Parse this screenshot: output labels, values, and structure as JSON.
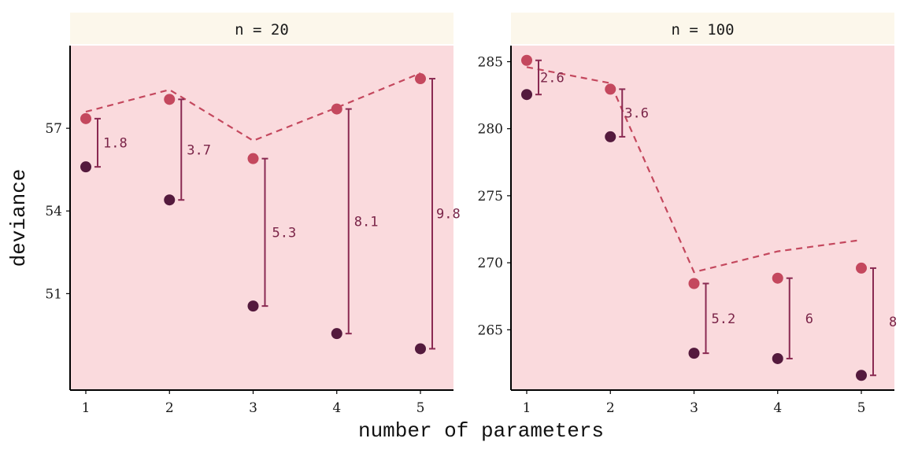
{
  "colors": {
    "panel_bg": "#fadadd",
    "strip_bg": "#fcf7eb",
    "out_of_sample": "#c4485e",
    "in_sample": "#541a3d",
    "interval": "#8a2a52",
    "label": "#7a2448",
    "axis": "#000000"
  },
  "chart_data": {
    "type": "scatter",
    "xlabel": "number of parameters",
    "ylabel": "deviance",
    "panels": [
      {
        "strip": "n = 20",
        "x_ticks": [
          1,
          2,
          3,
          4,
          5
        ],
        "y_ticks": [
          51,
          54,
          57
        ],
        "ylim": [
          47.5,
          60.0
        ],
        "x": [
          1,
          2,
          3,
          4,
          5
        ],
        "dev_out": [
          57.35,
          58.05,
          55.9,
          57.7,
          58.8
        ],
        "dev_in": [
          55.6,
          54.4,
          50.55,
          49.55,
          49.0
        ],
        "dashed_line": [
          57.6,
          58.4,
          56.55,
          57.75,
          59.0
        ],
        "diff_labels": [
          "1.8",
          "3.7",
          "5.3",
          "8.1",
          "9.8"
        ]
      },
      {
        "strip": "n = 100",
        "x_ticks": [
          1,
          2,
          3,
          4,
          5
        ],
        "y_ticks": [
          265,
          270,
          275,
          280,
          285
        ],
        "ylim": [
          260.5,
          286.2
        ],
        "x": [
          1,
          2,
          3,
          4,
          5
        ],
        "dev_out": [
          285.1,
          282.95,
          268.45,
          268.85,
          269.6
        ],
        "dev_in": [
          282.55,
          279.4,
          263.25,
          262.85,
          261.6
        ],
        "dashed_line": [
          284.6,
          283.4,
          269.3,
          270.85,
          271.7
        ],
        "diff_labels": [
          "2.6",
          "3.6",
          "5.2",
          "6",
          "8"
        ]
      }
    ]
  }
}
